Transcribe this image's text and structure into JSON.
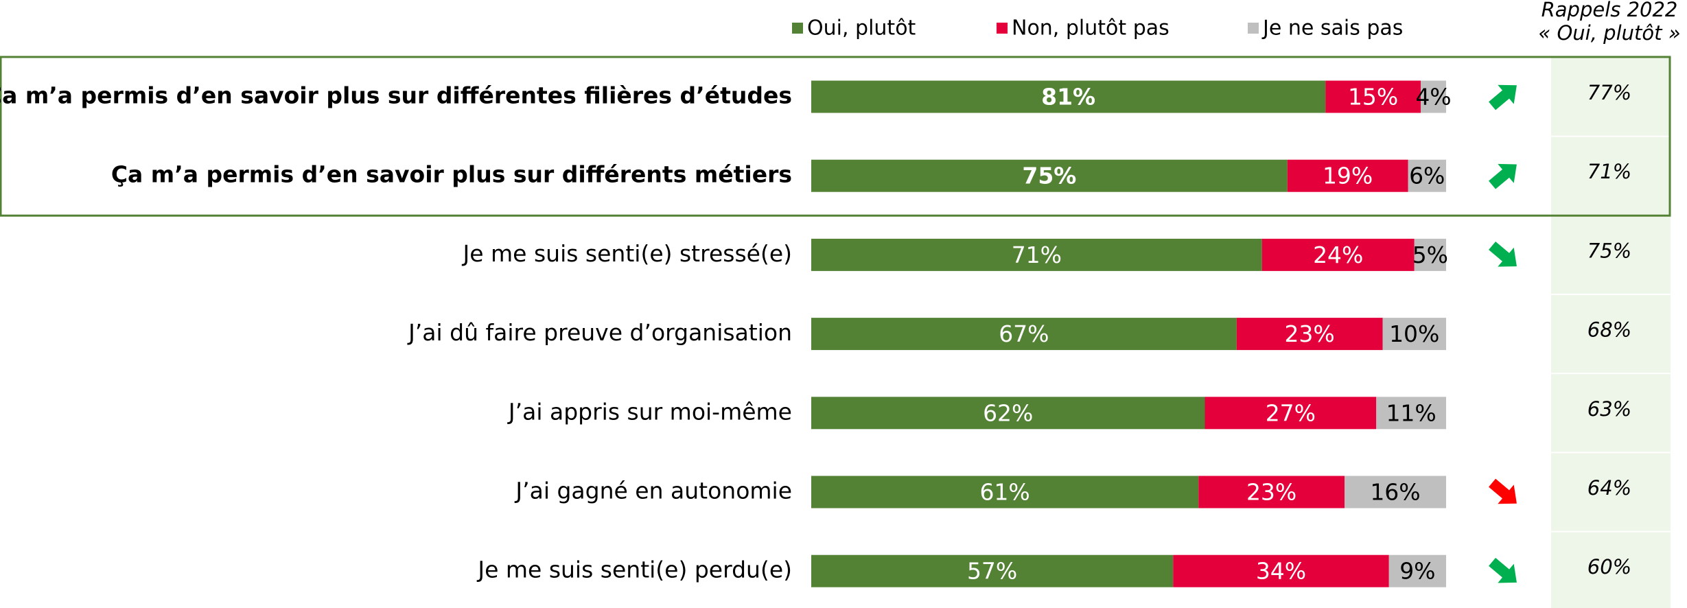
{
  "chart_data": {
    "type": "stacked_bar_horizontal",
    "categories": [
      "Ça m’a permis d’en savoir plus sur différentes filières d’études",
      "Ça m’a permis d’en savoir plus sur différents métiers",
      "Je me suis senti(e) stressé(e)",
      "J’ai dû faire preuve d’organisation",
      "J’ai appris sur moi-même",
      "J’ai gagné en autonomie",
      "Je me suis senti(e) perdu(e)"
    ],
    "bold_categories": [
      true,
      true,
      false,
      false,
      false,
      false,
      false
    ],
    "highlight_box_color": "#548235",
    "xlim": [
      0,
      100
    ],
    "series": [
      {
        "name": "Oui, plutôt",
        "color": "#548235",
        "label_color": "#ffffff",
        "values": [
          81,
          75,
          71,
          67,
          62,
          61,
          57
        ],
        "value_labels": [
          "81%",
          "75%",
          "71%",
          "67%",
          "62%",
          "61%",
          "57%"
        ]
      },
      {
        "name": "Non, plutôt pas",
        "color": "#e4003a",
        "label_color": "#ffffff",
        "values": [
          15,
          19,
          24,
          23,
          27,
          23,
          34
        ],
        "value_labels": [
          "15%",
          "19%",
          "24%",
          "23%",
          "27%",
          "23%",
          "34%"
        ]
      },
      {
        "name": "Je ne sais pas",
        "color": "#bfbfbf",
        "label_color": "#000000",
        "values": [
          4,
          6,
          5,
          10,
          11,
          16,
          9
        ],
        "value_labels": [
          "4%",
          "6%",
          "5%",
          "10%",
          "11%",
          "16%",
          "9%"
        ]
      }
    ],
    "trends": [
      {
        "direction": "up",
        "color": "#00b050"
      },
      {
        "direction": "up",
        "color": "#00b050"
      },
      {
        "direction": "down",
        "color": "#00b050"
      },
      null,
      null,
      {
        "direction": "down",
        "color": "#ff0000"
      },
      {
        "direction": "down",
        "color": "#00b050"
      }
    ],
    "recall": {
      "title_lines": [
        "Rappels 2022",
        "« Oui, plutôt »"
      ],
      "background": "#eef5e9",
      "values": [
        77,
        71,
        75,
        68,
        63,
        64,
        60
      ],
      "value_labels": [
        "77%",
        "71%",
        "75%",
        "68%",
        "63%",
        "64%",
        "60%"
      ]
    }
  }
}
